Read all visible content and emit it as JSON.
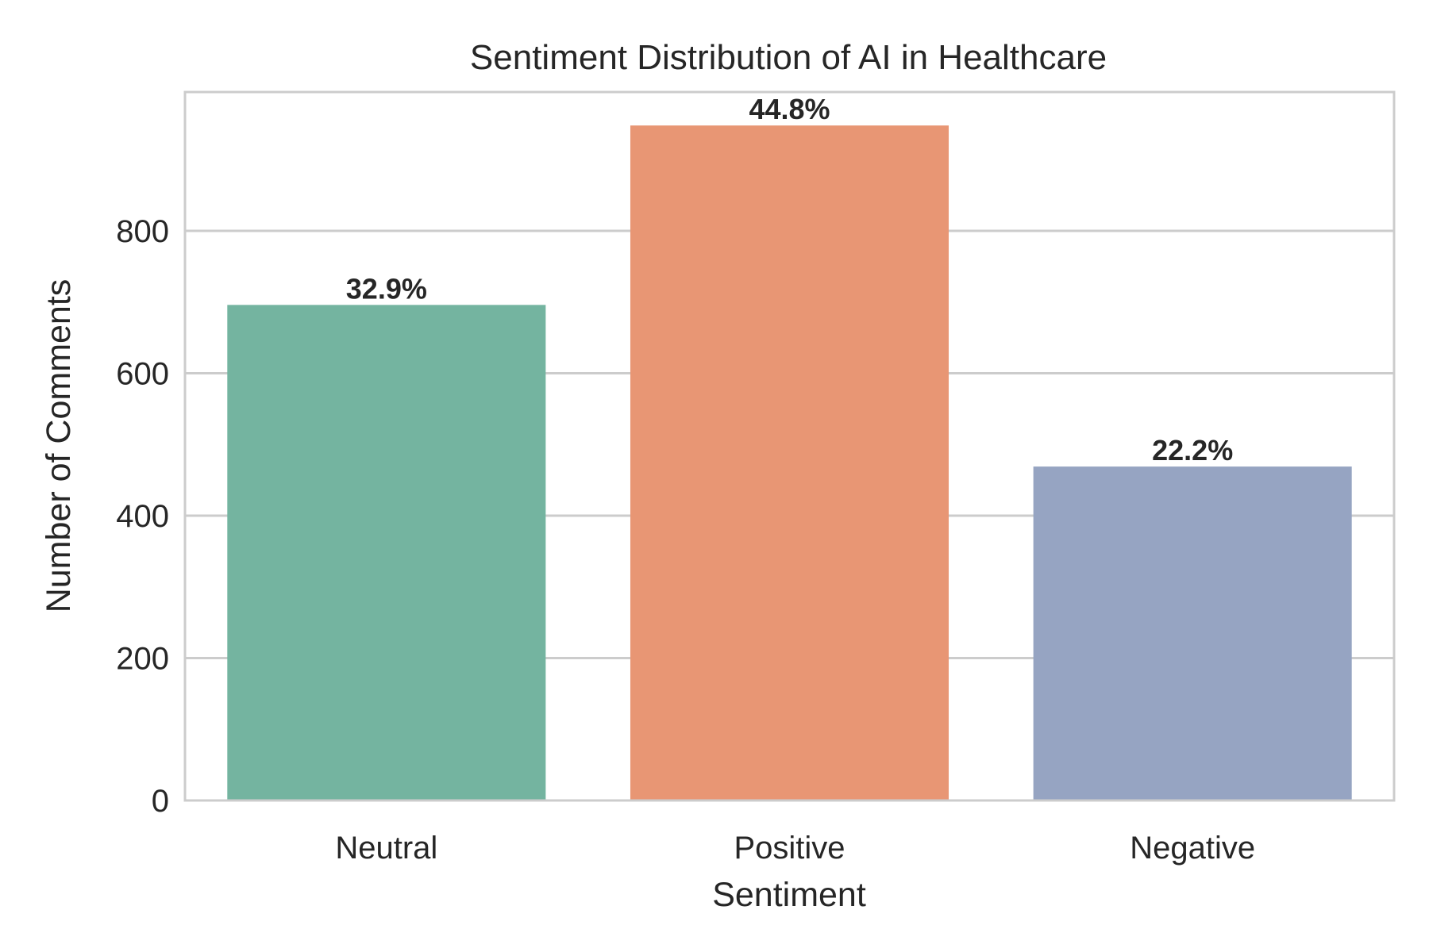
{
  "chart_data": {
    "type": "bar",
    "title": "Sentiment Distribution of AI in Healthcare",
    "xlabel": "Sentiment",
    "ylabel": "Number of Comments",
    "categories": [
      "Neutral",
      "Positive",
      "Negative"
    ],
    "values": [
      696,
      948,
      469
    ],
    "data_labels": [
      "32.9%",
      "44.8%",
      "22.2%"
    ],
    "colors": [
      "#74b4a0",
      "#e89674",
      "#96a4c2"
    ],
    "ylim": [
      0,
      995
    ],
    "yticks": [
      0,
      200,
      400,
      600,
      800
    ],
    "ytick_labels": [
      "0",
      "200",
      "400",
      "600",
      "800"
    ],
    "grid": "horizontal",
    "legend": "none"
  }
}
